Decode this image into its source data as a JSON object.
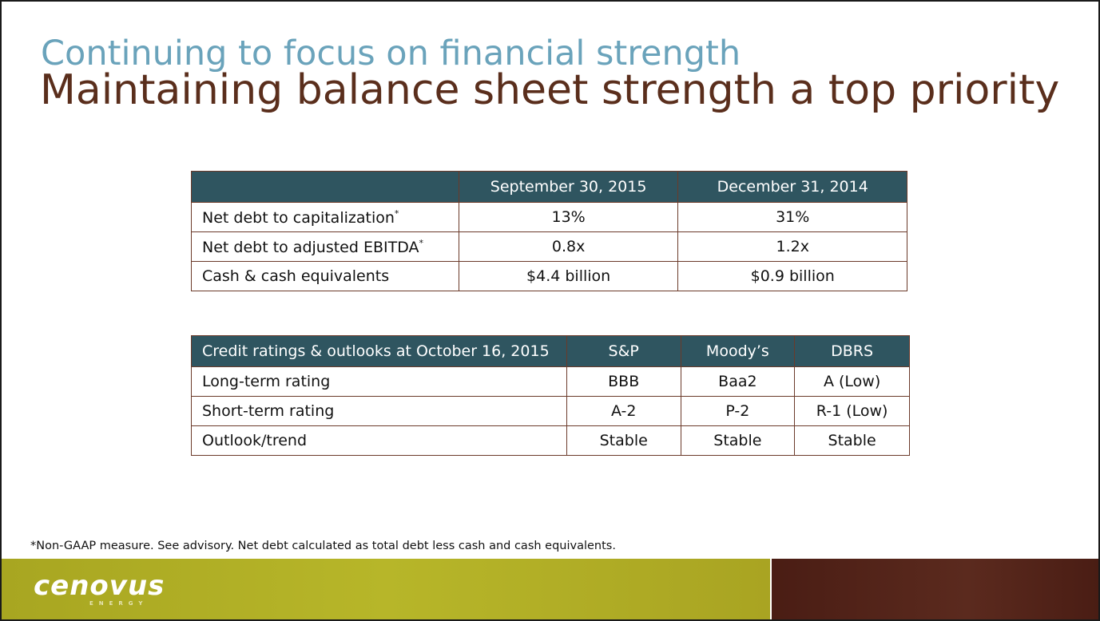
{
  "slide": {
    "subtitle": "Continuing to focus on financial strength",
    "title": "Maintaining balance sheet strength a top priority"
  },
  "table1": {
    "headers": [
      "",
      "September 30, 2015",
      "December 31, 2014"
    ],
    "rows": [
      {
        "label": "Net debt to capitalization",
        "mark": "*",
        "values": [
          "13%",
          "31%"
        ]
      },
      {
        "label": "Net debt to adjusted EBITDA",
        "mark": "*",
        "values": [
          "0.8x",
          "1.2x"
        ]
      },
      {
        "label": "Cash & cash equivalents",
        "mark": "",
        "values": [
          "$4.4 billion",
          "$0.9 billion"
        ]
      }
    ]
  },
  "table2": {
    "headers": [
      "Credit ratings & outlooks at October 16, 2015",
      "S&P",
      "Moody’s",
      "DBRS"
    ],
    "rows": [
      {
        "label": "Long-term rating",
        "values": [
          "BBB",
          "Baa2",
          "A (Low)"
        ]
      },
      {
        "label": "Short-term rating",
        "values": [
          "A-2",
          "P-2",
          "R-1 (Low)"
        ]
      },
      {
        "label": "Outlook/trend",
        "values": [
          "Stable",
          "Stable",
          "Stable"
        ]
      }
    ]
  },
  "footnote": "*Non-GAAP measure. See advisory. Net debt calculated as total debt less cash and cash equivalents.",
  "brand": {
    "logo": "cenovus",
    "logo_sub": "ENERGY",
    "colors": {
      "subtitle": "#6aa3bb",
      "title": "#5a2e1c",
      "table_header": "#2f5560",
      "footer_green": "#b0ad25",
      "footer_brown": "#5b2a1e"
    }
  }
}
